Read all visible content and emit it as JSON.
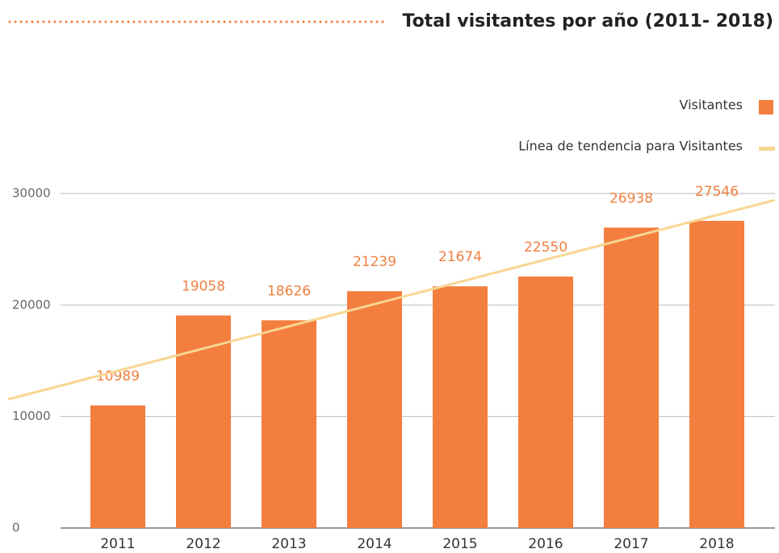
{
  "chart_data": {
    "type": "bar",
    "title": "Total visitantes por año (2011- 2018)",
    "categories": [
      "2011",
      "2012",
      "2013",
      "2014",
      "2015",
      "2016",
      "2017",
      "2018"
    ],
    "series": [
      {
        "name": "Visitantes",
        "color": "#f47e3e",
        "values": [
          10989,
          19058,
          18626,
          21239,
          21674,
          22550,
          26938,
          27546
        ]
      }
    ],
    "trendline": {
      "name": "Línea de tendencia para Visitantes",
      "color": "#f8d693"
    },
    "ylim": [
      0,
      30000
    ],
    "yticks": [
      0,
      10000,
      20000,
      30000
    ],
    "grid": true,
    "legend": "top-right"
  }
}
